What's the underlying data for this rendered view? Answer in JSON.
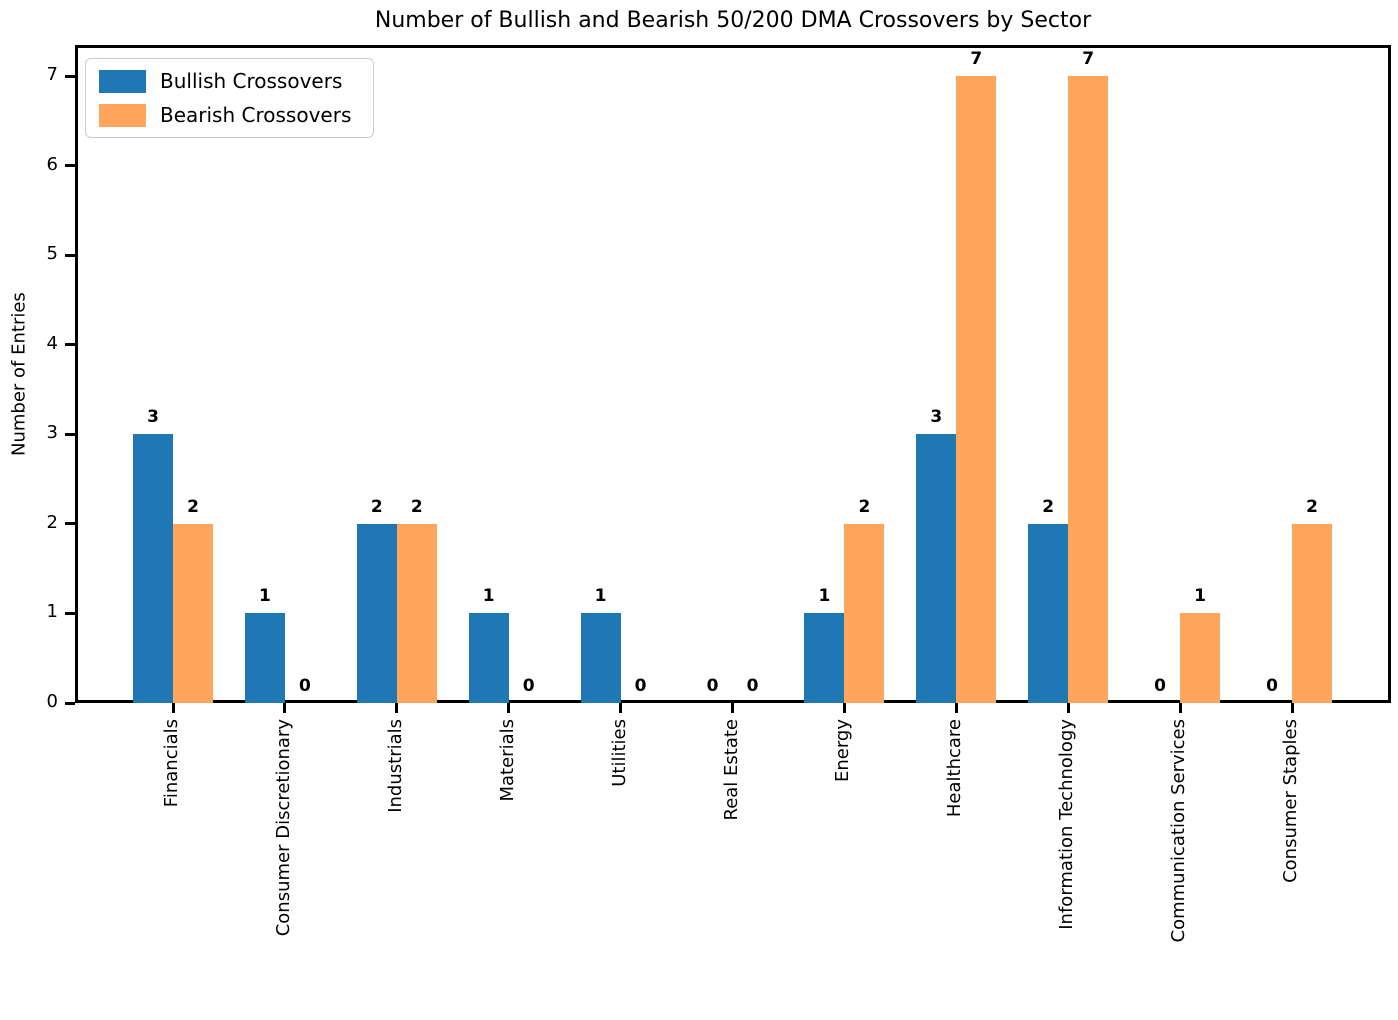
{
  "figure": {
    "title": "Number of Bullish and Bearish 50/200 DMA Crossovers by Sector",
    "ylabel": "Number of Entries"
  },
  "legend": {
    "position": "upper left",
    "items": [
      {
        "label": "Bullish Crossovers",
        "color": "#1f77b4"
      },
      {
        "label": "Bearish Crossovers",
        "color": "#ffa55c"
      }
    ]
  },
  "chart_data": {
    "type": "bar",
    "title": "Number of Bullish and Bearish 50/200 DMA Crossovers by Sector",
    "xlabel": "",
    "ylabel": "Number of Entries",
    "categories": [
      "Financials",
      "Consumer Discretionary",
      "Industrials",
      "Materials",
      "Utilities",
      "Real Estate",
      "Energy",
      "Healthcare",
      "Information Technology",
      "Communication Services",
      "Consumer Staples"
    ],
    "series": [
      {
        "name": "Bullish Crossovers",
        "color": "#1f77b4",
        "values": [
          3,
          1,
          2,
          1,
          1,
          0,
          1,
          3,
          2,
          0,
          0
        ]
      },
      {
        "name": "Bearish Crossovers",
        "color": "#ffa55c",
        "values": [
          2,
          0,
          2,
          0,
          0,
          0,
          2,
          7,
          7,
          1,
          2
        ]
      }
    ],
    "yticks": [
      0,
      1,
      2,
      3,
      4,
      5,
      6,
      7
    ],
    "ylim": [
      0,
      7.35
    ],
    "bar_value_labels": true,
    "x_tick_rotation": 90,
    "grid": false,
    "legend_position": "upper left"
  }
}
